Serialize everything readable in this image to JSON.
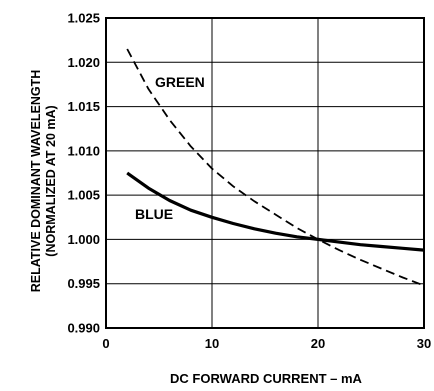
{
  "chart_data": {
    "type": "line",
    "xlabel": "DC FORWARD CURRENT – mA",
    "ylabel_lines": [
      "RELATIVE DOMINANT WAVELENGTH",
      "(NORMALIZED AT 20 mA)"
    ],
    "xlim": [
      0,
      30
    ],
    "ylim": [
      0.99,
      1.025
    ],
    "x_ticks": [
      0,
      10,
      20,
      30
    ],
    "x_tick_labels": [
      "0",
      "10",
      "20",
      "30"
    ],
    "y_ticks": [
      0.99,
      0.995,
      1.0,
      1.005,
      1.01,
      1.015,
      1.02,
      1.025
    ],
    "y_tick_labels": [
      "0.990",
      "0.995",
      "1.000",
      "1.005",
      "1.010",
      "1.015",
      "1.020",
      "1.025"
    ],
    "grid": true,
    "series": [
      {
        "name": "GREEN",
        "style": "dashed",
        "color": "#000000",
        "x": [
          2,
          4,
          6,
          8,
          10,
          12,
          14,
          16,
          18,
          20,
          22,
          24,
          26,
          28,
          30
        ],
        "y": [
          1.0215,
          1.017,
          1.0135,
          1.0105,
          1.008,
          1.006,
          1.0043,
          1.0028,
          1.0013,
          1.0,
          0.9988,
          0.9977,
          0.9967,
          0.9957,
          0.9948
        ]
      },
      {
        "name": "BLUE",
        "style": "solid",
        "color": "#000000",
        "x": [
          2,
          4,
          6,
          8,
          10,
          12,
          14,
          16,
          18,
          20,
          22,
          24,
          26,
          28,
          30
        ],
        "y": [
          1.0075,
          1.0058,
          1.0044,
          1.0033,
          1.0025,
          1.0018,
          1.0012,
          1.0007,
          1.0003,
          1.0,
          0.9997,
          0.9994,
          0.9992,
          0.999,
          0.9988
        ]
      }
    ]
  }
}
